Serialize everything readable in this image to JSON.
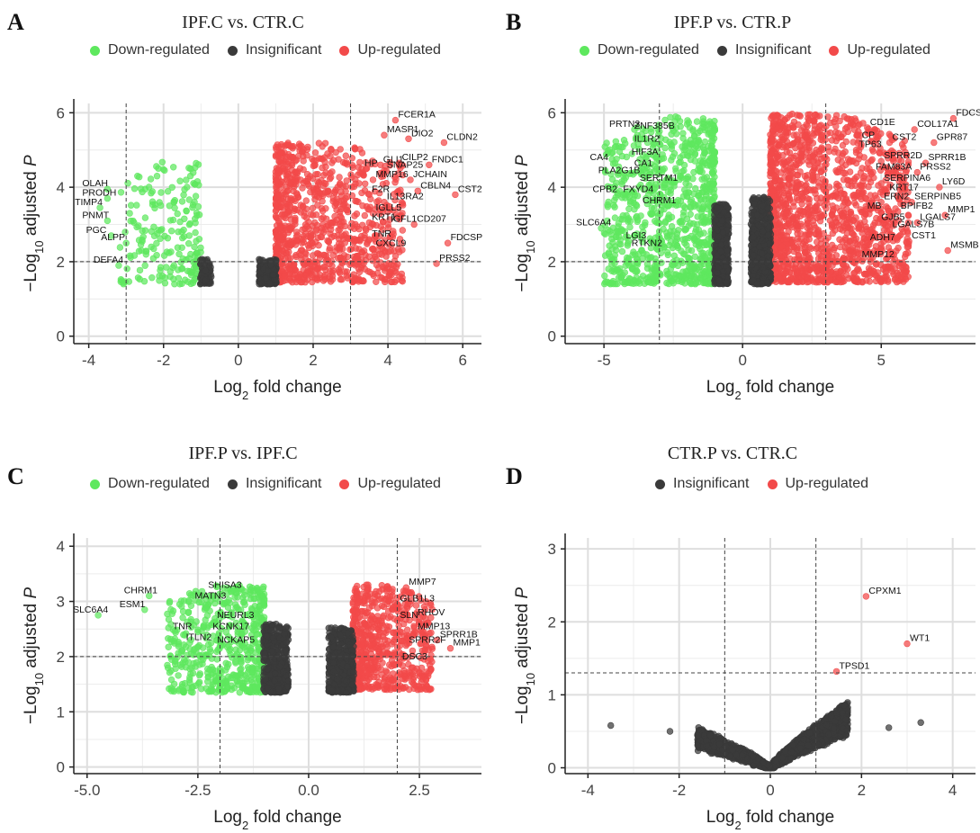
{
  "colors": {
    "down": "#5ee85e",
    "insig": "#3a3a3a",
    "up": "#f24a4a"
  },
  "legend_labels": {
    "down": "Down-regulated",
    "insig": "Insignificant",
    "up": "Up-regulated"
  },
  "axis_labels": {
    "x_prefix": "Log",
    "x_sub": "2",
    "x_suffix": " fold change",
    "y_prefix": "−Log",
    "y_sub": "10",
    "y_suffix": " adjusted ",
    "y_italic": "P"
  },
  "chart_data": [
    {
      "type": "scatter",
      "letter": "A",
      "title": "IPF.C vs. CTR.C",
      "legend": [
        "down",
        "insig",
        "up"
      ],
      "xlim": [
        -4.4,
        6.5
      ],
      "ylim": [
        -0.2,
        6.25
      ],
      "xticks": [
        -4,
        -2,
        0,
        2,
        4,
        6
      ],
      "xtick_labels": [
        "-4",
        "-2",
        "0",
        "2",
        "4",
        "6"
      ],
      "yticks": [
        0,
        2,
        4,
        6
      ],
      "ytick_labels": [
        "0",
        "2",
        "4",
        "6"
      ],
      "fc_cutoff": [
        -3,
        3
      ],
      "p_cutoff": 2.0,
      "clouds": [
        {
          "cls": "up",
          "x": [
            1.0,
            4.4
          ],
          "y0": 1.45,
          "y1": 5.2,
          "n": 950,
          "dir": 1
        },
        {
          "cls": "insig",
          "x": [
            0.55,
            1.02
          ],
          "y0": 1.4,
          "y1": 2.2,
          "n": 260,
          "dir": 0
        },
        {
          "cls": "down",
          "x": [
            -3.2,
            -1.0
          ],
          "y0": 1.4,
          "y1": 4.7,
          "n": 200,
          "dir": -1
        },
        {
          "cls": "insig",
          "x": [
            -1.02,
            -0.72
          ],
          "y0": 1.4,
          "y1": 2.25,
          "n": 70,
          "dir": 0
        }
      ],
      "genes": [
        {
          "name": "FCER1A",
          "x": 4.2,
          "y": 5.8,
          "cls": "up"
        },
        {
          "name": "CLDN2",
          "x": 5.5,
          "y": 5.2,
          "cls": "up"
        },
        {
          "name": "MASP1",
          "x": 3.9,
          "y": 5.4,
          "cls": "up"
        },
        {
          "name": "DIO2",
          "x": 4.55,
          "y": 5.3,
          "cls": "up"
        },
        {
          "name": "FNDC1",
          "x": 5.1,
          "y": 4.6,
          "cls": "up"
        },
        {
          "name": "GLI1",
          "x": 3.8,
          "y": 4.6,
          "cls": "up"
        },
        {
          "name": "CILP2",
          "x": 4.3,
          "y": 4.65,
          "cls": "up"
        },
        {
          "name": "HP",
          "x": 3.3,
          "y": 4.5,
          "cls": "up"
        },
        {
          "name": "SNAP25",
          "x": 3.9,
          "y": 4.45,
          "cls": "up"
        },
        {
          "name": "JCHAIN",
          "x": 4.6,
          "y": 4.2,
          "cls": "up"
        },
        {
          "name": "MMP16",
          "x": 3.6,
          "y": 4.2,
          "cls": "up"
        },
        {
          "name": "CBLN4",
          "x": 4.8,
          "y": 3.9,
          "cls": "up"
        },
        {
          "name": "CST2",
          "x": 5.8,
          "y": 3.8,
          "cls": "up"
        },
        {
          "name": "F2R",
          "x": 3.5,
          "y": 3.8,
          "cls": "up"
        },
        {
          "name": "IL13RA2",
          "x": 3.9,
          "y": 3.6,
          "cls": "up"
        },
        {
          "name": "IGLL5",
          "x": 3.6,
          "y": 3.3,
          "cls": "up"
        },
        {
          "name": "KRT1",
          "x": 3.5,
          "y": 3.05,
          "cls": "up"
        },
        {
          "name": "IGFL1",
          "x": 4.0,
          "y": 3.0,
          "cls": "up"
        },
        {
          "name": "CD207",
          "x": 4.7,
          "y": 3.0,
          "cls": "up"
        },
        {
          "name": "TNR",
          "x": 3.5,
          "y": 2.6,
          "cls": "up"
        },
        {
          "name": "CXCL9",
          "x": 3.6,
          "y": 2.35,
          "cls": "up"
        },
        {
          "name": "FDCSP",
          "x": 5.6,
          "y": 2.5,
          "cls": "up"
        },
        {
          "name": "PRSS2",
          "x": 5.3,
          "y": 1.95,
          "cls": "up"
        },
        {
          "name": "OLAH",
          "x": -3.5,
          "y": 3.95,
          "cls": "down"
        },
        {
          "name": "PRODH",
          "x": -3.5,
          "y": 3.7,
          "cls": "down"
        },
        {
          "name": "TIMP4",
          "x": -3.7,
          "y": 3.45,
          "cls": "down"
        },
        {
          "name": "PNMT",
          "x": -3.5,
          "y": 3.1,
          "cls": "down"
        },
        {
          "name": "PGC",
          "x": -3.4,
          "y": 2.7,
          "cls": "down"
        },
        {
          "name": "ALPP",
          "x": -3.0,
          "y": 2.5,
          "cls": "down"
        },
        {
          "name": "DEFA4",
          "x": -3.2,
          "y": 1.9,
          "cls": "down"
        }
      ]
    },
    {
      "type": "scatter",
      "letter": "B",
      "title": "IPF.P vs. CTR.P",
      "legend": [
        "down",
        "insig",
        "up"
      ],
      "xlim": [
        -6.4,
        8.4
      ],
      "ylim": [
        -0.2,
        6.25
      ],
      "xticks": [
        -5,
        0,
        5
      ],
      "xtick_labels": [
        "-5",
        "0",
        "5"
      ],
      "yticks": [
        0,
        2,
        4,
        6
      ],
      "ytick_labels": [
        "0",
        "2",
        "4",
        "6"
      ],
      "fc_cutoff": [
        -3,
        3
      ],
      "p_cutoff": 2.0,
      "clouds": [
        {
          "cls": "up",
          "x": [
            1.0,
            6.0
          ],
          "y0": 1.45,
          "y1": 6.0,
          "n": 1500,
          "dir": 1
        },
        {
          "cls": "insig",
          "x": [
            0.3,
            1.02
          ],
          "y0": 1.4,
          "y1": 4.2,
          "n": 520,
          "dir": 0
        },
        {
          "cls": "down",
          "x": [
            -5.0,
            -1.0
          ],
          "y0": 1.4,
          "y1": 5.9,
          "n": 900,
          "dir": -1
        },
        {
          "cls": "insig",
          "x": [
            -1.02,
            -0.5
          ],
          "y0": 1.4,
          "y1": 4.0,
          "n": 420,
          "dir": 0
        }
      ],
      "genes": [
        {
          "name": "PRTN3",
          "x": -3.9,
          "y": 5.55,
          "cls": "down"
        },
        {
          "name": "ZNF385B",
          "x": -3.0,
          "y": 5.5,
          "cls": "down"
        },
        {
          "name": "IL1R2",
          "x": -3.0,
          "y": 5.15,
          "cls": "down"
        },
        {
          "name": "HIF3A",
          "x": -3.1,
          "y": 4.8,
          "cls": "down"
        },
        {
          "name": "CA4",
          "x": -4.6,
          "y": 4.65,
          "cls": "down"
        },
        {
          "name": "CA1",
          "x": -3.0,
          "y": 4.5,
          "cls": "down"
        },
        {
          "name": "PLA2G1B",
          "x": -4.3,
          "y": 4.3,
          "cls": "down"
        },
        {
          "name": "SERTM1",
          "x": -2.8,
          "y": 4.1,
          "cls": "down"
        },
        {
          "name": "CPB2",
          "x": -4.5,
          "y": 3.8,
          "cls": "down"
        },
        {
          "name": "FXYD4",
          "x": -3.4,
          "y": 3.8,
          "cls": "down"
        },
        {
          "name": "CHRM1",
          "x": -2.7,
          "y": 3.5,
          "cls": "down"
        },
        {
          "name": "SLC6A4",
          "x": -5.1,
          "y": 2.9,
          "cls": "down"
        },
        {
          "name": "LGI3",
          "x": -3.3,
          "y": 2.55,
          "cls": "down"
        },
        {
          "name": "RTKN2",
          "x": -3.1,
          "y": 2.35,
          "cls": "down"
        },
        {
          "name": "FDCSP",
          "x": 7.6,
          "y": 5.85,
          "cls": "up"
        },
        {
          "name": "CD1E",
          "x": 4.5,
          "y": 5.6,
          "cls": "up"
        },
        {
          "name": "COL17A1",
          "x": 6.2,
          "y": 5.55,
          "cls": "up"
        },
        {
          "name": "CP",
          "x": 4.2,
          "y": 5.25,
          "cls": "up"
        },
        {
          "name": "CST2",
          "x": 5.3,
          "y": 5.2,
          "cls": "up"
        },
        {
          "name": "GPR87",
          "x": 6.9,
          "y": 5.2,
          "cls": "up"
        },
        {
          "name": "TP63",
          "x": 4.1,
          "y": 5.0,
          "cls": "up"
        },
        {
          "name": "SPRR2D",
          "x": 5.0,
          "y": 4.7,
          "cls": "up"
        },
        {
          "name": "SPRR1B",
          "x": 6.6,
          "y": 4.65,
          "cls": "up"
        },
        {
          "name": "FAM83A",
          "x": 4.7,
          "y": 4.4,
          "cls": "up"
        },
        {
          "name": "PRSS2",
          "x": 6.3,
          "y": 4.4,
          "cls": "up"
        },
        {
          "name": "SERPINA6",
          "x": 5.0,
          "y": 4.1,
          "cls": "up"
        },
        {
          "name": "LY6D",
          "x": 7.1,
          "y": 4.0,
          "cls": "up"
        },
        {
          "name": "KRT17",
          "x": 5.2,
          "y": 3.85,
          "cls": "up"
        },
        {
          "name": "ERN2",
          "x": 5.0,
          "y": 3.6,
          "cls": "up"
        },
        {
          "name": "SERPINB5",
          "x": 6.1,
          "y": 3.6,
          "cls": "up"
        },
        {
          "name": "MB",
          "x": 4.4,
          "y": 3.35,
          "cls": "up"
        },
        {
          "name": "BPIFB2",
          "x": 5.6,
          "y": 3.35,
          "cls": "up"
        },
        {
          "name": "MMP1",
          "x": 7.3,
          "y": 3.25,
          "cls": "up"
        },
        {
          "name": "GJB5",
          "x": 4.9,
          "y": 3.05,
          "cls": "up"
        },
        {
          "name": "LGALS7",
          "x": 6.3,
          "y": 3.05,
          "cls": "up"
        },
        {
          "name": "LGALS7B",
          "x": 5.3,
          "y": 2.85,
          "cls": "up"
        },
        {
          "name": "CST1",
          "x": 6.0,
          "y": 2.55,
          "cls": "up"
        },
        {
          "name": "ADH7",
          "x": 4.5,
          "y": 2.5,
          "cls": "up"
        },
        {
          "name": "MSMB",
          "x": 7.4,
          "y": 2.3,
          "cls": "up"
        },
        {
          "name": "MMP12",
          "x": 4.2,
          "y": 2.05,
          "cls": "up"
        }
      ]
    },
    {
      "type": "scatter",
      "letter": "C",
      "title": "IPF.P vs. IPF.C",
      "legend": [
        "down",
        "insig",
        "up"
      ],
      "xlim": [
        -5.3,
        3.9
      ],
      "ylim": [
        -0.12,
        4.15
      ],
      "xticks": [
        -5,
        -2.5,
        0,
        2.5
      ],
      "xtick_labels": [
        "-5.0",
        "-2.5",
        "0.0",
        "2.5"
      ],
      "yticks": [
        0,
        1,
        2,
        3,
        4
      ],
      "ytick_labels": [
        "0",
        "1",
        "2",
        "3",
        "4"
      ],
      "fc_cutoff": [
        -2,
        2
      ],
      "p_cutoff": 2.0,
      "clouds": [
        {
          "cls": "up",
          "x": [
            1.0,
            2.8
          ],
          "y0": 1.4,
          "y1": 3.3,
          "n": 620,
          "dir": 1
        },
        {
          "cls": "insig",
          "x": [
            0.45,
            1.02
          ],
          "y0": 1.35,
          "y1": 2.75,
          "n": 420,
          "dir": 0
        },
        {
          "cls": "down",
          "x": [
            -3.2,
            -1.0
          ],
          "y0": 1.35,
          "y1": 3.3,
          "n": 560,
          "dir": -1
        },
        {
          "cls": "insig",
          "x": [
            -1.02,
            -0.45
          ],
          "y0": 1.35,
          "y1": 2.85,
          "n": 420,
          "dir": 0
        }
      ],
      "genes": [
        {
          "name": "SHISA3",
          "x": -1.7,
          "y": 3.2,
          "cls": "down"
        },
        {
          "name": "CHRM1",
          "x": -3.6,
          "y": 3.1,
          "cls": "down"
        },
        {
          "name": "MATN3",
          "x": -2.0,
          "y": 3.0,
          "cls": "down"
        },
        {
          "name": "ESM1",
          "x": -3.7,
          "y": 2.85,
          "cls": "down"
        },
        {
          "name": "SLC6A4",
          "x": -4.75,
          "y": 2.75,
          "cls": "down"
        },
        {
          "name": "NEURL3",
          "x": -1.5,
          "y": 2.65,
          "cls": "down"
        },
        {
          "name": "TNR",
          "x": -2.5,
          "y": 2.45,
          "cls": "down"
        },
        {
          "name": "KCNK17",
          "x": -1.6,
          "y": 2.45,
          "cls": "down"
        },
        {
          "name": "ITLN2",
          "x": -2.2,
          "y": 2.25,
          "cls": "down"
        },
        {
          "name": "NCKAP5",
          "x": -1.5,
          "y": 2.2,
          "cls": "down"
        },
        {
          "name": "MMP7",
          "x": 2.2,
          "y": 3.25,
          "cls": "up"
        },
        {
          "name": "GLB1L3",
          "x": 2.0,
          "y": 2.95,
          "cls": "up"
        },
        {
          "name": "RHOV",
          "x": 2.4,
          "y": 2.7,
          "cls": "up"
        },
        {
          "name": "SLN",
          "x": 2.0,
          "y": 2.65,
          "cls": "up"
        },
        {
          "name": "MMP13",
          "x": 2.4,
          "y": 2.45,
          "cls": "up"
        },
        {
          "name": "SPRR1B",
          "x": 2.9,
          "y": 2.3,
          "cls": "up"
        },
        {
          "name": "SPRR2F",
          "x": 2.2,
          "y": 2.2,
          "cls": "up"
        },
        {
          "name": "MMP1",
          "x": 3.2,
          "y": 2.15,
          "cls": "up"
        },
        {
          "name": "DSC3",
          "x": 2.05,
          "y": 1.9,
          "cls": "up"
        }
      ]
    },
    {
      "type": "scatter",
      "letter": "D",
      "title": "CTR.P vs. CTR.C",
      "legend": [
        "insig",
        "up"
      ],
      "xlim": [
        -4.5,
        4.5
      ],
      "ylim": [
        -0.08,
        3.15
      ],
      "xticks": [
        -4,
        -2,
        0,
        2,
        4
      ],
      "xtick_labels": [
        "-4",
        "-2",
        "0",
        "2",
        "4"
      ],
      "yticks": [
        0,
        1,
        2,
        3
      ],
      "ytick_labels": [
        "0",
        "1",
        "2",
        "3"
      ],
      "fc_cutoff": [
        -1,
        1
      ],
      "p_cutoff": 1.3,
      "clouds": [
        {
          "cls": "insig",
          "x": [
            0.0,
            1.7
          ],
          "y0": 0.0,
          "y1": 0.9,
          "n": 1400,
          "dir": 0,
          "vshape": true
        },
        {
          "cls": "insig",
          "x": [
            -1.6,
            0.0
          ],
          "y0": 0.0,
          "y1": 0.55,
          "n": 900,
          "dir": 0,
          "vshape": true
        }
      ],
      "extra_points": [
        {
          "x": -3.5,
          "y": 0.58,
          "cls": "insig"
        },
        {
          "x": 3.3,
          "y": 0.62,
          "cls": "insig"
        },
        {
          "x": 2.6,
          "y": 0.55,
          "cls": "insig"
        },
        {
          "x": -2.2,
          "y": 0.5,
          "cls": "insig"
        }
      ],
      "genes": [
        {
          "name": "CPXM1",
          "x": 2.1,
          "y": 2.35,
          "cls": "up"
        },
        {
          "name": "WT1",
          "x": 3.0,
          "y": 1.7,
          "cls": "up"
        },
        {
          "name": "TPSD1",
          "x": 1.45,
          "y": 1.32,
          "cls": "up"
        }
      ]
    }
  ]
}
